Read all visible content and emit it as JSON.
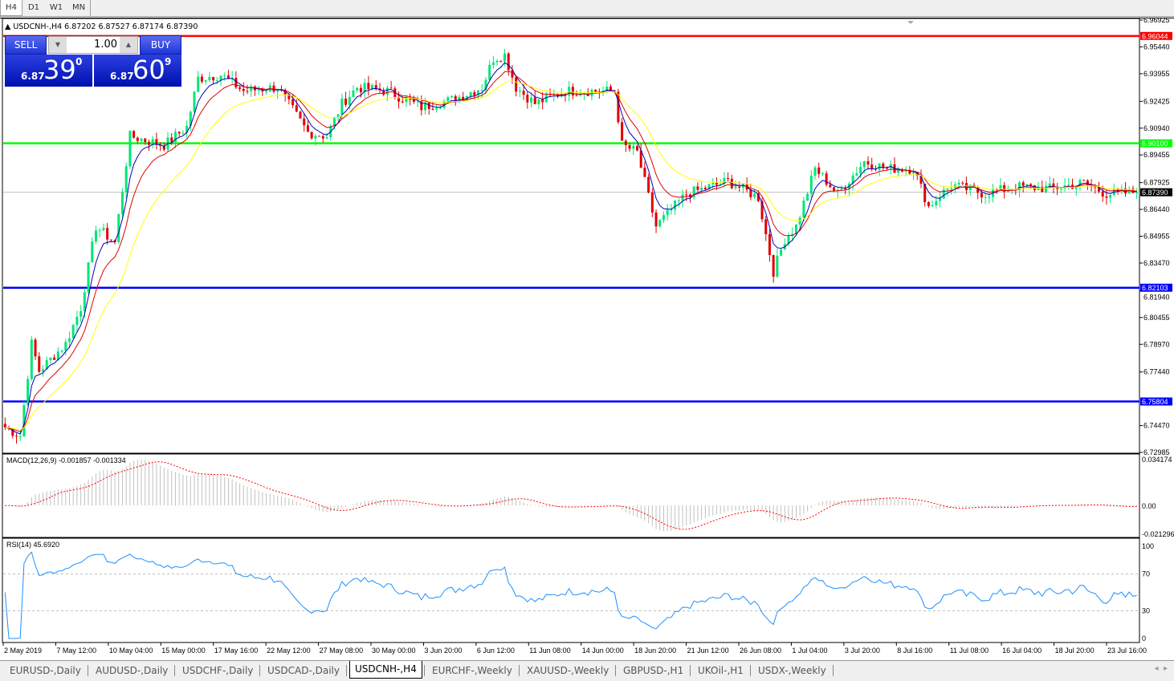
{
  "timeframes": [
    "H4",
    "D1",
    "W1",
    "MN"
  ],
  "selected_timeframe": "H4",
  "header": {
    "symbol_info": "USDCNH-,H4  6.87202 6.87527 6.87174 6.87390"
  },
  "trade_panel": {
    "sell_label": "SELL",
    "buy_label": "BUY",
    "lot": "1.00",
    "sell_prefix": "6.87",
    "sell_big": "39",
    "sell_sup": "0",
    "buy_prefix": "6.87",
    "buy_big": "60",
    "buy_sup": "9"
  },
  "colors": {
    "bull": "#00e676",
    "bear": "#e00000",
    "ma_fast": "#0000c0",
    "ma_mid": "#e00000",
    "ma_slow": "#ffff00",
    "macd_hist": "#c0c0c0",
    "macd_signal": "#ff0000",
    "rsi": "#1e90ff"
  },
  "chart_data": {
    "type": "candlestick",
    "symbol": "USDCNH-",
    "timeframe": "H4",
    "ylim": [
      6.72985,
      6.96925
    ],
    "y_ticks": [
      "6.96925",
      "6.95440",
      "6.93955",
      "6.92425",
      "6.90940",
      "6.89455",
      "6.87925",
      "6.86440",
      "6.84955",
      "6.83470",
      "6.81940",
      "6.80455",
      "6.78970",
      "6.77440",
      "6.74470",
      "6.72985"
    ],
    "x_ticks": [
      "2 May 2019",
      "7 May 12:00",
      "10 May 04:00",
      "15 May 00:00",
      "17 May 16:00",
      "22 May 12:00",
      "27 May 08:00",
      "30 May 00:00",
      "3 Jun 20:00",
      "6 Jun 12:00",
      "11 Jun 08:00",
      "14 Jun 00:00",
      "18 Jun 20:00",
      "21 Jun 12:00",
      "26 Jun 08:00",
      "1 Jul 04:00",
      "3 Jul 20:00",
      "8 Jul 16:00",
      "11 Jul 08:00",
      "16 Jul 04:00",
      "18 Jul 20:00",
      "23 Jul 16:00"
    ],
    "bars": 300,
    "close_path": [
      [
        0,
        6.7437
      ],
      [
        4,
        6.739
      ],
      [
        7,
        6.79
      ],
      [
        9,
        6.775
      ],
      [
        16,
        6.79
      ],
      [
        20,
        6.81
      ],
      [
        24,
        6.855
      ],
      [
        29,
        6.846
      ],
      [
        33,
        6.905
      ],
      [
        42,
        6.9
      ],
      [
        48,
        6.91
      ],
      [
        51,
        6.937
      ],
      [
        57,
        6.939
      ],
      [
        63,
        6.93
      ],
      [
        72,
        6.932
      ],
      [
        80,
        6.907
      ],
      [
        85,
        6.905
      ],
      [
        89,
        6.923
      ],
      [
        93,
        6.932
      ],
      [
        101,
        6.93
      ],
      [
        110,
        6.921
      ],
      [
        118,
        6.925
      ],
      [
        126,
        6.932
      ],
      [
        129,
        6.948
      ],
      [
        132,
        6.95
      ],
      [
        135,
        6.932
      ],
      [
        140,
        6.923
      ],
      [
        148,
        6.93
      ],
      [
        161,
        6.93
      ],
      [
        163,
        6.9
      ],
      [
        167,
        6.896
      ],
      [
        172,
        6.855
      ],
      [
        176,
        6.864
      ],
      [
        180,
        6.873
      ],
      [
        191,
        6.88
      ],
      [
        199,
        6.871
      ],
      [
        203,
        6.83
      ],
      [
        206,
        6.848
      ],
      [
        209,
        6.855
      ],
      [
        214,
        6.887
      ],
      [
        220,
        6.873
      ],
      [
        227,
        6.891
      ],
      [
        233,
        6.887
      ],
      [
        240,
        6.887
      ],
      [
        244,
        6.866
      ],
      [
        250,
        6.878
      ],
      [
        259,
        6.873
      ],
      [
        267,
        6.877
      ],
      [
        276,
        6.876
      ],
      [
        285,
        6.879
      ],
      [
        291,
        6.873
      ],
      [
        299,
        6.8739
      ]
    ],
    "levels": [
      {
        "price": "6.96044",
        "color": "#ff0000"
      },
      {
        "price": "6.90100",
        "color": "#00ff00"
      },
      {
        "price": "6.82103",
        "color": "#0000ff"
      },
      {
        "price": "6.75804",
        "color": "#0000ff"
      }
    ],
    "current_price": "6.87390",
    "macd": {
      "label": "MACD(12,26,9) -0.001857 -0.001334",
      "ylim": [
        -0.021296,
        0.034174
      ],
      "ticks": [
        "0.034174",
        "0.00",
        "-0.021296"
      ]
    },
    "rsi": {
      "label": "RSI(14) 45.6920",
      "ylim": [
        0,
        100
      ],
      "levels": [
        30,
        70
      ],
      "ticks": [
        "100",
        "70",
        "30",
        "0"
      ]
    }
  },
  "tabs": [
    "EURUSD-,Daily",
    "AUDUSD-,Daily",
    "USDCHF-,Daily",
    "USDCAD-,Daily",
    "USDCNH-,H4",
    "EURCHF-,Weekly",
    "XAUUSD-,Weekly",
    "GBPUSD-,H1",
    "UKOil-,H1",
    "USDX-,Weekly"
  ],
  "selected_tab": "USDCNH-,H4"
}
